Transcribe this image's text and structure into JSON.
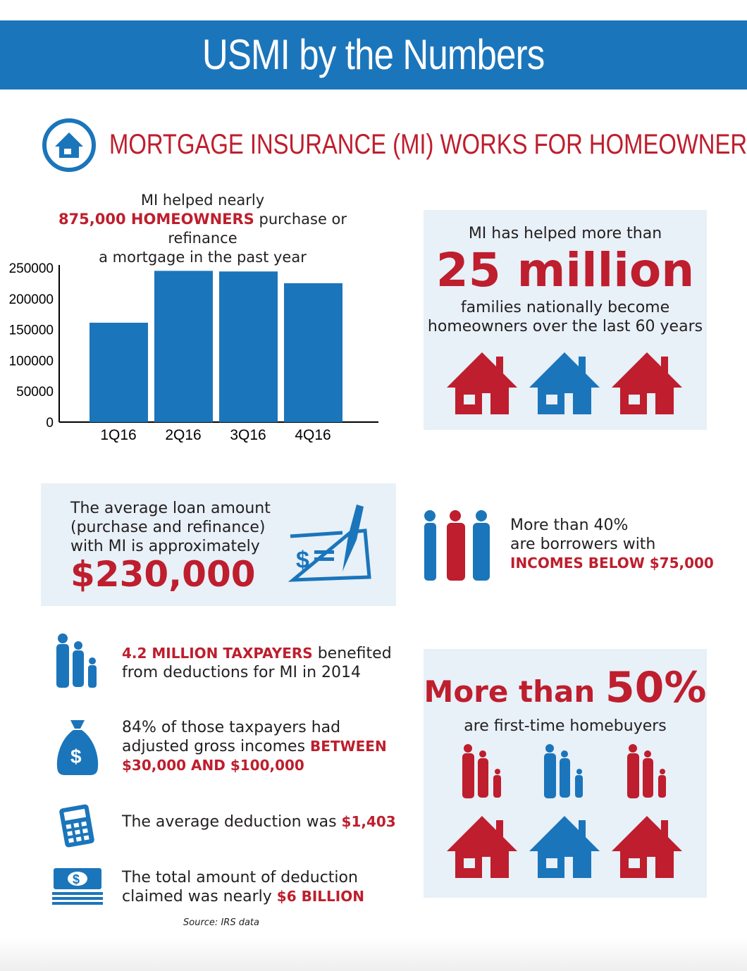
{
  "title": "USMI by the Numbers",
  "section_title": "MORTGAGE INSURANCE (MI) WORKS FOR HOMEOWNERS",
  "colors": {
    "blue": "#1b75bb",
    "red": "#be1e2d",
    "panel": "#e8f0f8"
  },
  "chart_intro": {
    "line1": "MI helped nearly",
    "highlight": "875,000 HOMEOWNERS",
    "line2": " purchase or refinance",
    "line3": "a mortgage in the past year"
  },
  "chart_data": {
    "type": "bar",
    "categories": [
      "1Q16",
      "2Q16",
      "3Q16",
      "4Q16"
    ],
    "values": [
      161000,
      245000,
      244000,
      225000
    ],
    "yticks": [
      "0",
      "50000",
      "100000",
      "150000",
      "200000",
      "250000"
    ],
    "ylim": [
      0,
      250000
    ],
    "grid": false,
    "color": "#1b75bb"
  },
  "million": {
    "pre": "MI has helped more than",
    "big": "25 million",
    "post1": "families nationally become",
    "post2": "homeowners over the last 60 years"
  },
  "loan": {
    "l1": "The average loan amount",
    "l2": "(purchase and refinance)",
    "l3": "with MI is approximately",
    "amount": "$230,000"
  },
  "income": {
    "l1": "More than 40%",
    "l2": "are borrowers with",
    "highlight": "INCOMES BELOW $75,000"
  },
  "tax": [
    {
      "highlight": "4.2 MILLION TAXPAYERS",
      "a": " benefited",
      "b": "from deductions for MI in 2014"
    },
    {
      "a": "84% of those taxpayers had",
      "b": "adjusted gross incomes ",
      "highlight": "BETWEEN",
      "highlight2": "$30,000 AND $100,000"
    },
    {
      "a": "The average deduction was ",
      "highlight": "$1,403"
    },
    {
      "a": "The total amount of deduction",
      "b": "claimed was nearly ",
      "highlight": "$6 BILLION"
    }
  ],
  "source": "Source: IRS data",
  "firsttime": {
    "pre": "More than ",
    "big": "50%",
    "post": "are first-time homebuyers"
  }
}
